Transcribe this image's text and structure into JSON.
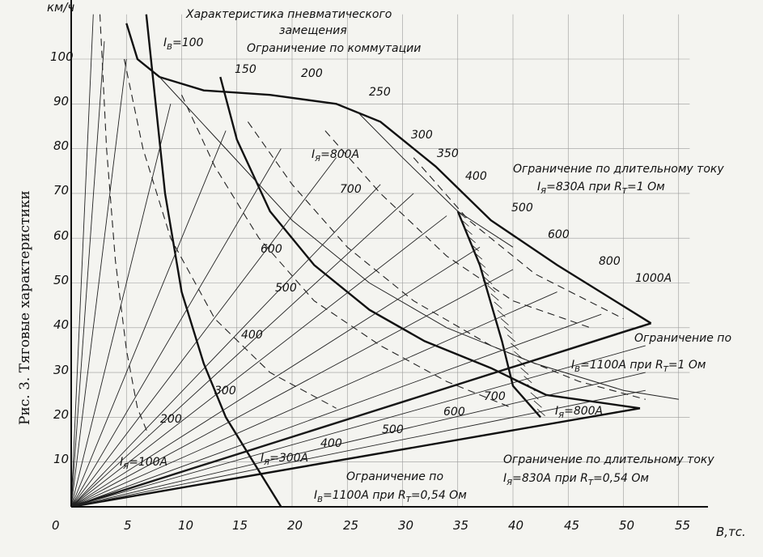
{
  "caption": "Рис. 3. Тяговые характеристики",
  "chart_data": {
    "type": "line",
    "xlabel": "В,тс.",
    "ylabel": "км/ч",
    "xlim": [
      0,
      60
    ],
    "ylim": [
      0,
      110
    ],
    "xticks": [
      "0",
      "5",
      "10",
      "15",
      "20",
      "25",
      "30",
      "35",
      "40",
      "45",
      "50",
      "55"
    ],
    "yticks": [
      "10",
      "20",
      "30",
      "40",
      "50",
      "60",
      "70",
      "80",
      "90",
      "100"
    ],
    "annotations": {
      "pneumatic_1": "Характеристика пневматического",
      "pneumatic_2": "замещения",
      "commutation": "Ограничение по коммутации",
      "iv100": "I",
      "iv100_sub": "В",
      "iv100_val": "=100",
      "iya800": "I",
      "iya800_sub": "Я",
      "iya800_val": "=800А",
      "cont_top_1": "Ограничение по длительному току",
      "cont_top_2": "I",
      "cont_top_2_sub": "Я",
      "cont_top_2_val": "=830А при R",
      "cont_top_2_rsub": "Т",
      "cont_top_2_end": "=1 Ом",
      "ib1100_1_a": "Ограничение по",
      "ib1100_1_b": "I",
      "ib1100_1_bsub": "В",
      "ib1100_1_bval": "=1100А при R",
      "ib1100_1_rsub": "Т",
      "ib1100_1_end": "=1 Ом",
      "iya800_low": "I",
      "iya800_low_sub": "Я",
      "iya800_low_val": "=800А",
      "cont_bot_1": "Ограничение по длительному току",
      "cont_bot_2": "I",
      "cont_bot_2_sub": "Я",
      "cont_bot_2_val": "=830А  при R",
      "cont_bot_2_rsub": "Т",
      "cont_bot_2_end": "=0,54 Ом",
      "ib1100_054_a": "Ограничение по",
      "ib1100_054_b": "I",
      "ib1100_054_bsub": "В",
      "ib1100_054_bval": "=1100А при R",
      "ib1100_054_rsub": "Т",
      "ib1100_054_end": "=0,54 Ом",
      "iya100": "I",
      "iya100_sub": "Я",
      "iya100_val": "=100А",
      "iya300": "I",
      "iya300_sub": "Я",
      "iya300_val": "=300А"
    },
    "field_current_labels": [
      "150",
      "200",
      "250",
      "300",
      "350",
      "400",
      "500",
      "600",
      "800",
      "1000А"
    ],
    "armature_current_labels": [
      "700",
      "600",
      "500",
      "400",
      "300",
      "200",
      "400",
      "500",
      "600",
      "700"
    ],
    "series": [
      {
        "values": [
          [
            5,
            108
          ],
          [
            6,
            100
          ],
          [
            8,
            96
          ],
          [
            12,
            93
          ],
          [
            18,
            92
          ],
          [
            24,
            90
          ],
          [
            28,
            86
          ],
          [
            33,
            76
          ],
          [
            38,
            64
          ],
          [
            44,
            54
          ],
          [
            52.5,
            41
          ]
        ]
      },
      {
        "values": [
          [
            6.8,
            110
          ],
          [
            8.5,
            70
          ],
          [
            10,
            48
          ],
          [
            12,
            32
          ],
          [
            14,
            20
          ],
          [
            16.5,
            10
          ],
          [
            19,
            0
          ]
        ]
      },
      {
        "values": [
          [
            13.5,
            96
          ],
          [
            15,
            82
          ],
          [
            18,
            66
          ],
          [
            22,
            54
          ],
          [
            27,
            44
          ],
          [
            32,
            37
          ],
          [
            38,
            31
          ],
          [
            43,
            25
          ],
          [
            51.5,
            22
          ]
        ]
      },
      {
        "values": [
          [
            0,
            0
          ],
          [
            52.5,
            41
          ]
        ]
      },
      {
        "values": [
          [
            0,
            0
          ],
          [
            51.5,
            22
          ]
        ]
      },
      {
        "values": [
          [
            35,
            66
          ],
          [
            37,
            54
          ],
          [
            39,
            37
          ],
          [
            40,
            27
          ],
          [
            42.5,
            20
          ]
        ]
      }
    ]
  }
}
